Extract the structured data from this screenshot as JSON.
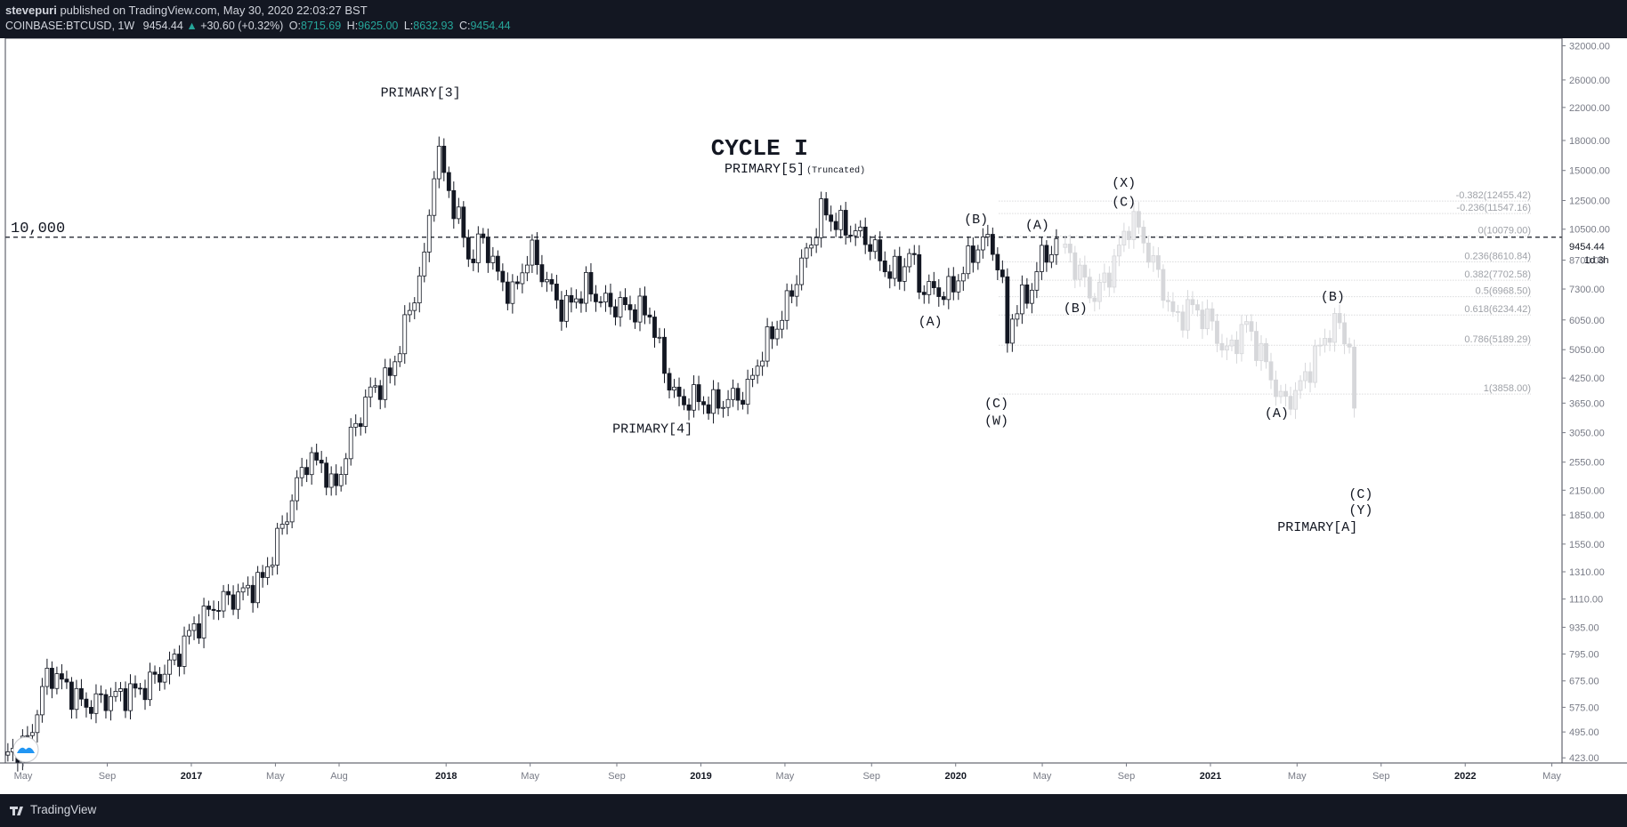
{
  "header": {
    "publisher_user": "stevepuri",
    "publisher_rest": "published on TradingView.com, May 30, 2020 22:03:27 BST",
    "symbol": "COINBASE:BTCUSD, 1W",
    "last": "9454.44",
    "change": "+30.60 (+0.32%)",
    "open_label": "O:",
    "open": "8715.69",
    "high_label": "H:",
    "high": "9625.00",
    "low_label": "L:",
    "low": "8632.93",
    "close_label": "C:",
    "close": "9454.44",
    "change_arrow": "▲"
  },
  "footer": {
    "brand": "TradingView"
  },
  "chart_data": {
    "type": "candlestick",
    "y_scale": "log",
    "ylim": [
      410,
      33500
    ],
    "y_ticks": [
      "32000.00",
      "26000.00",
      "22000.00",
      "18000.00",
      "15000.00",
      "12500.00",
      "10500.00",
      "8700.00",
      "7300.00",
      "6050.00",
      "5050.00",
      "4250.00",
      "3650.00",
      "3050.00",
      "2550.00",
      "2150.00",
      "1850.00",
      "1550.00",
      "1310.00",
      "1110.00",
      "935.00",
      "795.00",
      "675.00",
      "575.00",
      "495.00",
      "423.00"
    ],
    "y_tick_values": [
      32000,
      26000,
      22000,
      18000,
      15000,
      12500,
      10500,
      8700,
      7300,
      6050,
      5050,
      4250,
      3650,
      3050,
      2550,
      2150,
      1850,
      1550,
      1310,
      1110,
      935,
      795,
      675,
      575,
      495,
      423
    ],
    "x_tick_labels": [
      "May",
      "Sep",
      "2017",
      "May",
      "Aug",
      "2018",
      "May",
      "Sep",
      "2019",
      "May",
      "Sep",
      "2020",
      "May",
      "Sep",
      "2021",
      "May",
      "Sep",
      "2022",
      "May"
    ],
    "x_tick_dates": [
      2016.34,
      2016.67,
      2017.0,
      2017.33,
      2017.58,
      2018.0,
      2018.33,
      2018.67,
      2019.0,
      2019.33,
      2019.67,
      2020.0,
      2020.34,
      2020.67,
      2021.0,
      2021.34,
      2021.67,
      2022.0,
      2022.34
    ],
    "xlim": [
      2016.27,
      2022.38
    ],
    "last_price_label": "9454.44",
    "last_price_value": 9454.44,
    "countdown": "1d 3h",
    "horizontal_line": {
      "label": "10,000",
      "value": 10000
    },
    "actual_keypoints": [
      [
        2016.28,
        430
      ],
      [
        2016.36,
        470
      ],
      [
        2016.44,
        720
      ],
      [
        2016.5,
        660
      ],
      [
        2016.58,
        580
      ],
      [
        2016.68,
        610
      ],
      [
        2016.8,
        640
      ],
      [
        2016.92,
        740
      ],
      [
        2017.0,
        920
      ],
      [
        2017.1,
        1080
      ],
      [
        2017.2,
        1150
      ],
      [
        2017.28,
        1250
      ],
      [
        2017.38,
        1900
      ],
      [
        2017.45,
        2600
      ],
      [
        2017.52,
        2500
      ],
      [
        2017.56,
        2100
      ],
      [
        2017.62,
        2900
      ],
      [
        2017.7,
        3900
      ],
      [
        2017.78,
        4300
      ],
      [
        2017.86,
        6500
      ],
      [
        2017.92,
        9000
      ],
      [
        2017.96,
        17500
      ],
      [
        2018.0,
        14000
      ],
      [
        2018.06,
        10500
      ],
      [
        2018.1,
        8500
      ],
      [
        2018.14,
        10200
      ],
      [
        2018.2,
        8000
      ],
      [
        2018.26,
        7000
      ],
      [
        2018.33,
        9300
      ],
      [
        2018.4,
        7500
      ],
      [
        2018.46,
        6400
      ],
      [
        2018.55,
        7400
      ],
      [
        2018.62,
        6700
      ],
      [
        2018.72,
        6500
      ],
      [
        2018.8,
        6300
      ],
      [
        2018.86,
        4400
      ],
      [
        2018.92,
        3600
      ],
      [
        2018.96,
        3800
      ],
      [
        2019.04,
        3600
      ],
      [
        2019.12,
        3750
      ],
      [
        2019.18,
        3900
      ],
      [
        2019.24,
        5000
      ],
      [
        2019.32,
        6200
      ],
      [
        2019.38,
        8000
      ],
      [
        2019.44,
        10000
      ],
      [
        2019.48,
        12000
      ],
      [
        2019.52,
        11000
      ],
      [
        2019.58,
        10500
      ],
      [
        2019.66,
        9800
      ],
      [
        2019.72,
        8300
      ],
      [
        2019.78,
        8000
      ],
      [
        2019.82,
        9200
      ],
      [
        2019.86,
        7400
      ],
      [
        2019.92,
        7200
      ],
      [
        2019.98,
        7200
      ],
      [
        2020.05,
        8700
      ],
      [
        2020.1,
        9800
      ],
      [
        2020.14,
        9700
      ],
      [
        2020.18,
        7900
      ],
      [
        2020.2,
        5200
      ],
      [
        2020.22,
        6200
      ],
      [
        2020.26,
        6800
      ],
      [
        2020.3,
        7400
      ],
      [
        2020.34,
        9000
      ],
      [
        2020.38,
        9300
      ],
      [
        2020.41,
        9454
      ]
    ],
    "projection_keypoints": [
      [
        2020.43,
        9400
      ],
      [
        2020.48,
        8200
      ],
      [
        2020.54,
        6900
      ],
      [
        2020.6,
        8000
      ],
      [
        2020.66,
        10000
      ],
      [
        2020.69,
        11400
      ],
      [
        2020.74,
        9700
      ],
      [
        2020.8,
        7800
      ],
      [
        2020.86,
        6000
      ],
      [
        2020.92,
        6600
      ],
      [
        2021.0,
        6000
      ],
      [
        2021.06,
        4900
      ],
      [
        2021.14,
        5900
      ],
      [
        2021.22,
        4600
      ],
      [
        2021.28,
        3650
      ],
      [
        2021.34,
        3900
      ],
      [
        2021.4,
        4700
      ],
      [
        2021.46,
        5600
      ],
      [
        2021.5,
        6000
      ],
      [
        2021.55,
        5100
      ],
      [
        2021.58,
        2200
      ]
    ],
    "fib_levels": [
      {
        "label": "-0.382(12455.42)",
        "value": 12455.42
      },
      {
        "label": "-0.236(11547.16)",
        "value": 11547.16
      },
      {
        "label": "0(10079.00)",
        "value": 10079.0
      },
      {
        "label": "0.236(8610.84)",
        "value": 8610.84
      },
      {
        "label": "0.382(7702.58)",
        "value": 7702.58
      },
      {
        "label": "0.5(6968.50)",
        "value": 6968.5
      },
      {
        "label": "0.618(6234.42)",
        "value": 6234.42
      },
      {
        "label": "0.786(5189.29)",
        "value": 5189.29
      },
      {
        "label": "1(3858.00)",
        "value": 3858.0
      }
    ],
    "annotations": [
      {
        "text": "PRIMARY[3]",
        "x": 2017.9,
        "y": 23500,
        "size": 15
      },
      {
        "text": "CYCLE I",
        "x": 2019.23,
        "y": 16500,
        "size": 26
      },
      {
        "text": "PRIMARY[5]",
        "x": 2019.25,
        "y": 14800,
        "size": 15
      },
      {
        "text": "(Truncated)",
        "x": 2019.53,
        "y": 14800,
        "size": 10
      },
      {
        "text": "PRIMARY[4]",
        "x": 2018.81,
        "y": 3050,
        "size": 15
      },
      {
        "text": "(B)",
        "x": 2020.08,
        "y": 10900,
        "size": 15
      },
      {
        "text": "(A)",
        "x": 2020.32,
        "y": 10500,
        "size": 15
      },
      {
        "text": "(X)",
        "x": 2020.66,
        "y": 13600,
        "size": 15
      },
      {
        "text": "(C)",
        "x": 2020.66,
        "y": 12100,
        "size": 15
      },
      {
        "text": "(A)",
        "x": 2019.9,
        "y": 5850,
        "size": 15
      },
      {
        "text": "(B)",
        "x": 2020.47,
        "y": 6350,
        "size": 15
      },
      {
        "text": "(C)",
        "x": 2020.16,
        "y": 3560,
        "size": 15
      },
      {
        "text": "(W)",
        "x": 2020.16,
        "y": 3200,
        "size": 15
      },
      {
        "text": "(A)",
        "x": 2021.26,
        "y": 3350,
        "size": 15
      },
      {
        "text": "(B)",
        "x": 2021.48,
        "y": 6800,
        "size": 15
      },
      {
        "text": "(C)",
        "x": 2021.59,
        "y": 2050,
        "size": 15
      },
      {
        "text": "(Y)",
        "x": 2021.59,
        "y": 1860,
        "size": 15
      },
      {
        "text": "PRIMARY[A]",
        "x": 2021.42,
        "y": 1680,
        "size": 15
      }
    ]
  }
}
